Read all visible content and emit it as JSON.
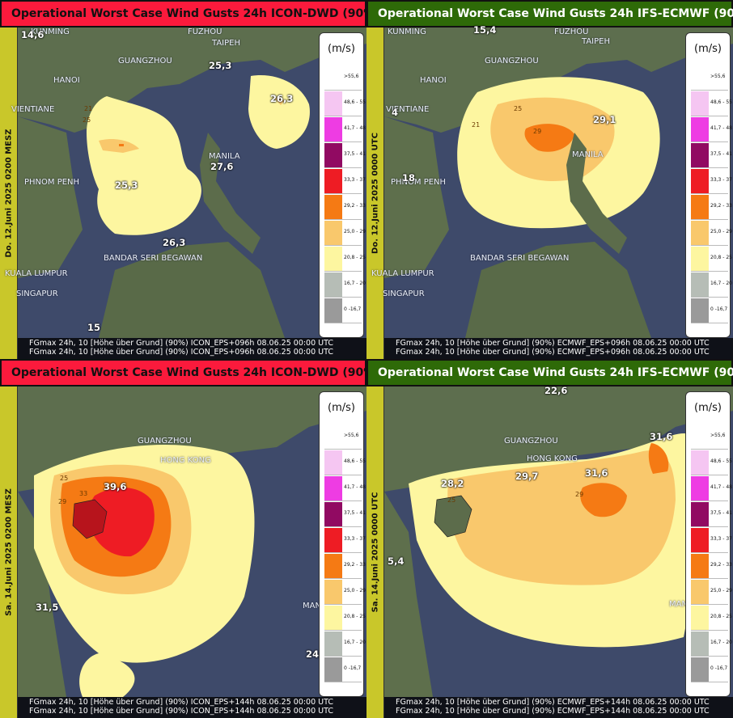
{
  "legend": {
    "unit": "(m/s)",
    "classes": [
      {
        "label": ">55,6",
        "color": "#ffffff"
      },
      {
        "label": "48,6 - 55",
        "color": "#f5c6f2"
      },
      {
        "label": "41,7 - 48",
        "color": "#ee3ce3"
      },
      {
        "label": "37,5 - 41",
        "color": "#910a62"
      },
      {
        "label": "33,3 - 37",
        "color": "#ee1c24"
      },
      {
        "label": "29,2 - 33",
        "color": "#f57a14"
      },
      {
        "label": "25,0 - 29",
        "color": "#f9c86c"
      },
      {
        "label": "20,8 - 25",
        "color": "#fdf6a0"
      },
      {
        "label": "16,7 - 20",
        "color": "#b6bdb6"
      },
      {
        "label": "0 -16,7",
        "color": "#9a9a9a"
      }
    ]
  },
  "panels": [
    {
      "model": "icon",
      "title": "Operational Worst Case Wind Gusts 24h ICON-DWD (90%)",
      "date": "Do. 12.Juni 2025 0200 MESZ",
      "footer1": "FGmax 24h, 10 [Höhe über Grund] (90%) ICON_EPS+096h   08.06.25 00:00 UTC",
      "footer2": "FGmax 24h, 10 [Höhe über Grund] (90%) ICON_EPS+096h   08.06.25 00:00 UTC",
      "cities": [
        "KUNMING",
        "FUZHOU",
        "TAIPEH",
        "GUANGZHOU",
        "HANOI",
        "VIENTIANE",
        "MANILA",
        "PHNOM PENH",
        "BANDAR SERI BEGAWAN",
        "KUALA LUMPUR",
        "SINGAPUR"
      ],
      "values": [
        "14,6",
        "25,3",
        "26,3",
        "27,6",
        "25,3",
        "26,3",
        "15"
      ],
      "contour_labels": [
        "21",
        "25"
      ]
    },
    {
      "model": "ifs",
      "title": "Operational Worst Case Wind Gusts 24h  IFS-ECMWF (90%)",
      "date": "Do. 12.Juni 2025 0000 UTC",
      "footer1": "FGmax 24h, 10 [Höhe über Grund] (90%) ECMWF_EPS+096h  08.06.25 00:00 UTC",
      "footer2": "FGmax 24h, 10 [Höhe über Grund] (90%) ECMWF_EPS+096h  08.06.25 00:00 UTC",
      "cities": [
        "KUNMING",
        "FUZHOU",
        "TAIPEH",
        "GUANGZHOU",
        "HANOI",
        "VIENTIANE",
        "MANILA",
        "PHNOM PENH",
        "BANDAR SERI BEGAWAN",
        "KUALA LUMPUR",
        "SINGAPUR"
      ],
      "values": [
        "15,4",
        "29,1",
        "18",
        "4"
      ],
      "contour_labels": [
        "25",
        "21",
        "29"
      ]
    },
    {
      "model": "icon",
      "title": "Operational Worst Case Wind Gusts 24h ICON-DWD (90%)",
      "date": "Sa. 14.Juni 2025 0200 MESZ",
      "footer1": "FGmax 24h, 10 [Höhe über Grund] (90%) ICON_EPS+144h   08.06.25 00:00 UTC",
      "footer2": "FGmax 24h, 10 [Höhe über Grund] (90%) ICON_EPS+144h   08.06.25 00:00 UTC",
      "cities": [
        "GUANGZHOU",
        "HONG KONG",
        "MAN"
      ],
      "values": [
        "39,6",
        "31,5",
        "24,"
      ],
      "contour_labels": [
        "25",
        "33",
        "29"
      ]
    },
    {
      "model": "ifs",
      "title": "Operational Worst Case Wind Gusts 24h  IFS-ECMWF (90%)",
      "date": "Sa. 14.Juni 2025 0000 UTC",
      "footer1": "FGmax 24h, 10 [Höhe über Grund] (90%) ECMWF_EPS+144h  08.06.25 00:00 UTC",
      "footer2": "FGmax 24h, 10 [Höhe über Grund] (90%) ECMWF_EPS+144h  08.06.25 00:00 UTC",
      "cities": [
        "GUANGZHOU",
        "HONG KONG",
        "MAN"
      ],
      "values": [
        "22,6",
        "31,6",
        "28,2",
        "29,7",
        "31,6",
        "5,4"
      ],
      "contour_labels": [
        "25",
        "29"
      ]
    }
  ]
}
